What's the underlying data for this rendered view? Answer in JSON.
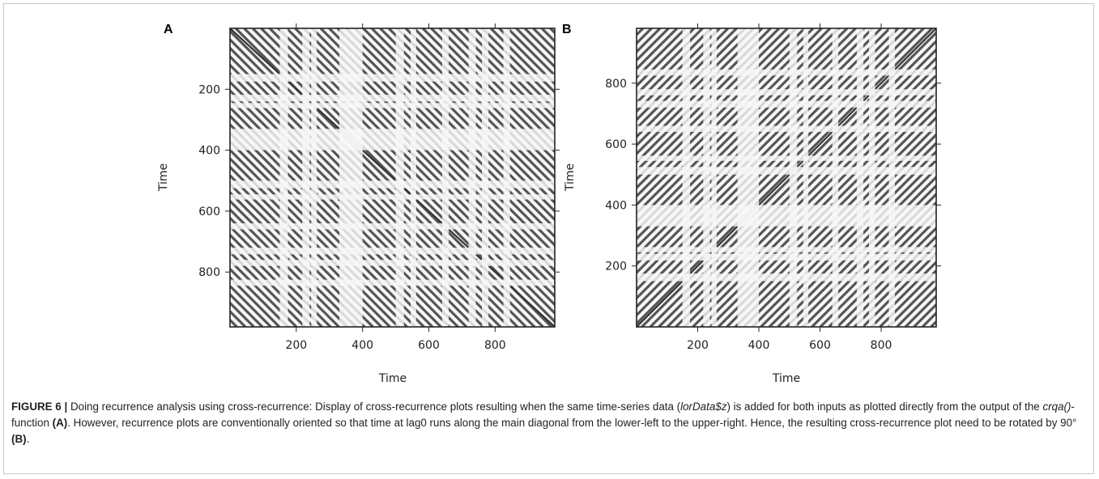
{
  "figure": {
    "label": "FIGURE 6 |",
    "caption_parts": {
      "p1": " Doing recurrence analysis using cross-recurrence: Display of cross-recurrence plots resulting when the same time-series data (",
      "code1": "lorData$z",
      "p2": ") is added for both inputs as plotted directly from the output of the ",
      "code2": "crqa()",
      "p3": "-function ",
      "ref_a": "(A)",
      "p4": ". However, recurrence plots are conventionally oriented so that time at lag0 runs along the main diagonal from the lower-left to the upper-right. Hence, the resulting cross-recurrence plot need to be rotated by 90° ",
      "ref_b": "(B)",
      "p5": "."
    }
  },
  "chart_data": [
    {
      "type": "heatmap",
      "panel": "A",
      "xlabel": "Time",
      "ylabel": "Time",
      "xlim": [
        0,
        980
      ],
      "ylim": [
        0,
        980
      ],
      "y_reversed": true,
      "xticks": [
        200,
        400,
        600,
        800
      ],
      "yticks": [
        200,
        400,
        600,
        800
      ],
      "diagonal_direction": "top-left to bottom-right",
      "blank_bands": [
        [
          150,
          175
        ],
        [
          218,
          240
        ],
        [
          245,
          262
        ],
        [
          330,
          400
        ],
        [
          500,
          525
        ],
        [
          545,
          562
        ],
        [
          640,
          660
        ],
        [
          720,
          742
        ],
        [
          760,
          780
        ],
        [
          825,
          845
        ]
      ],
      "line_color": "#555555"
    },
    {
      "type": "heatmap",
      "panel": "B",
      "xlabel": "Time",
      "ylabel": "Time",
      "xlim": [
        0,
        980
      ],
      "ylim": [
        0,
        980
      ],
      "y_reversed": false,
      "xticks": [
        200,
        400,
        600,
        800
      ],
      "yticks": [
        200,
        400,
        600,
        800
      ],
      "diagonal_direction": "bottom-left to top-right",
      "blank_bands": [
        [
          150,
          175
        ],
        [
          218,
          240
        ],
        [
          245,
          262
        ],
        [
          330,
          400
        ],
        [
          500,
          525
        ],
        [
          545,
          562
        ],
        [
          640,
          660
        ],
        [
          720,
          742
        ],
        [
          760,
          780
        ],
        [
          825,
          845
        ]
      ],
      "line_color": "#555555"
    }
  ]
}
